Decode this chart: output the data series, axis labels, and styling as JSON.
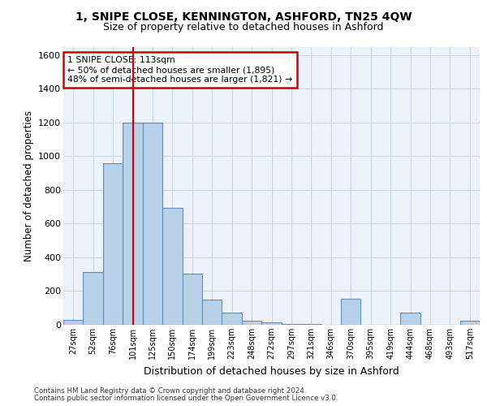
{
  "title1": "1, SNIPE CLOSE, KENNINGTON, ASHFORD, TN25 4QW",
  "title2": "Size of property relative to detached houses in Ashford",
  "xlabel": "Distribution of detached houses by size in Ashford",
  "ylabel": "Number of detached properties",
  "categories": [
    "27sqm",
    "52sqm",
    "76sqm",
    "101sqm",
    "125sqm",
    "150sqm",
    "174sqm",
    "199sqm",
    "223sqm",
    "248sqm",
    "272sqm",
    "297sqm",
    "321sqm",
    "346sqm",
    "370sqm",
    "395sqm",
    "419sqm",
    "444sqm",
    "468sqm",
    "493sqm",
    "517sqm"
  ],
  "values": [
    30,
    315,
    960,
    1200,
    1200,
    695,
    305,
    150,
    70,
    25,
    15,
    5,
    5,
    0,
    155,
    0,
    0,
    70,
    0,
    0,
    25
  ],
  "bar_color": "#b8d0e8",
  "bar_edge_color": "#6090c0",
  "vline_color": "#cc0000",
  "annotation_text": "1 SNIPE CLOSE: 113sqm\n← 50% of detached houses are smaller (1,895)\n48% of semi-detached houses are larger (1,821) →",
  "annotation_box_color": "#ffffff",
  "annotation_box_edge": "#cc0000",
  "ylim": [
    0,
    1650
  ],
  "yticks": [
    0,
    200,
    400,
    600,
    800,
    1000,
    1200,
    1400,
    1600
  ],
  "grid_color": "#c8d8e8",
  "bg_color": "#edf2f8",
  "footer1": "Contains HM Land Registry data © Crown copyright and database right 2024.",
  "footer2": "Contains public sector information licensed under the Open Government Licence v3.0."
}
